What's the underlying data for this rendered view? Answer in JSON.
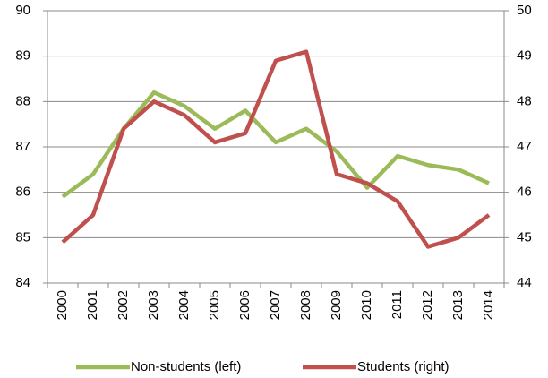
{
  "chart_data": {
    "type": "line",
    "categories": [
      "2000",
      "2001",
      "2002",
      "2003",
      "2004",
      "2005",
      "2006",
      "2007",
      "2008",
      "2009",
      "2010",
      "2011",
      "2012",
      "2013",
      "2014"
    ],
    "series": [
      {
        "name": "Non-students (left)",
        "color": "#9bbb59",
        "values": [
          85.9,
          86.4,
          87.4,
          88.2,
          87.9,
          87.4,
          87.8,
          87.1,
          87.4,
          86.9,
          86.1,
          86.8,
          86.6,
          86.5,
          86.2
        ]
      },
      {
        "name": "Students (right)",
        "color": "#c0504d",
        "axis": "y2",
        "values": [
          44.9,
          45.5,
          47.4,
          48.0,
          47.7,
          47.1,
          47.3,
          48.9,
          49.1,
          46.4,
          46.2,
          45.8,
          44.8,
          45.0,
          45.5
        ]
      }
    ],
    "ylim": [
      84,
      90
    ],
    "yticks": [
      84,
      85,
      86,
      87,
      88,
      89,
      90
    ],
    "y2lim": [
      44,
      50
    ],
    "y2ticks": [
      44,
      45,
      46,
      47,
      48,
      49,
      50
    ],
    "grid": true,
    "legend": "bottom"
  }
}
